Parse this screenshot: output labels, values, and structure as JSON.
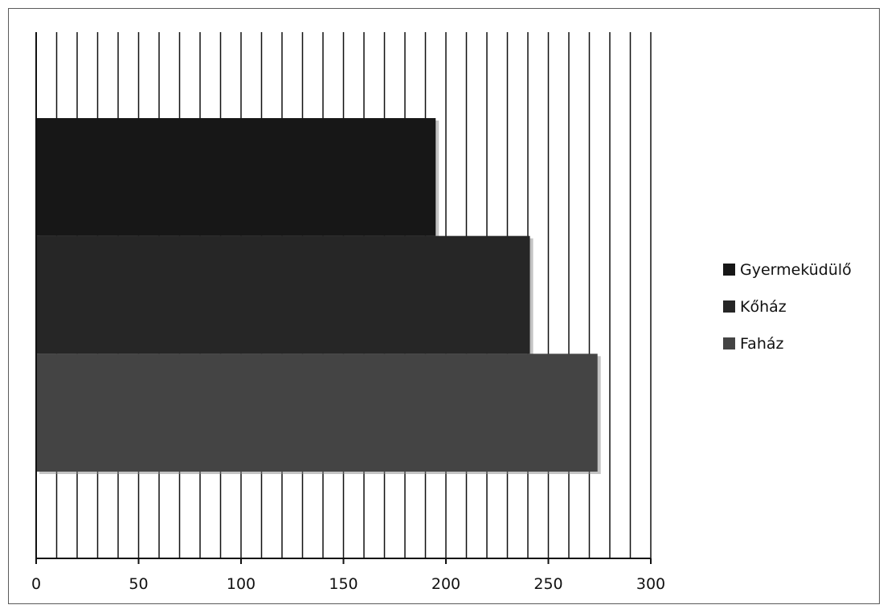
{
  "chart_data": {
    "type": "bar",
    "orientation": "horizontal",
    "stacked": false,
    "categories": [
      ""
    ],
    "series": [
      {
        "name": "Gyermeküdülő",
        "values": [
          195
        ],
        "color": "#171717"
      },
      {
        "name": "Kőház",
        "values": [
          241
        ],
        "color": "#262626"
      },
      {
        "name": "Faház",
        "values": [
          274
        ],
        "color": "#444444"
      }
    ],
    "xlim": [
      0,
      300
    ],
    "x_ticks": [
      0,
      50,
      100,
      150,
      200,
      250,
      300
    ],
    "x_tick_labels": [
      "0",
      "50",
      "100",
      "150",
      "200",
      "250",
      "300"
    ],
    "minor_gridline_step": 10,
    "grid": true,
    "legend_position": "right"
  }
}
